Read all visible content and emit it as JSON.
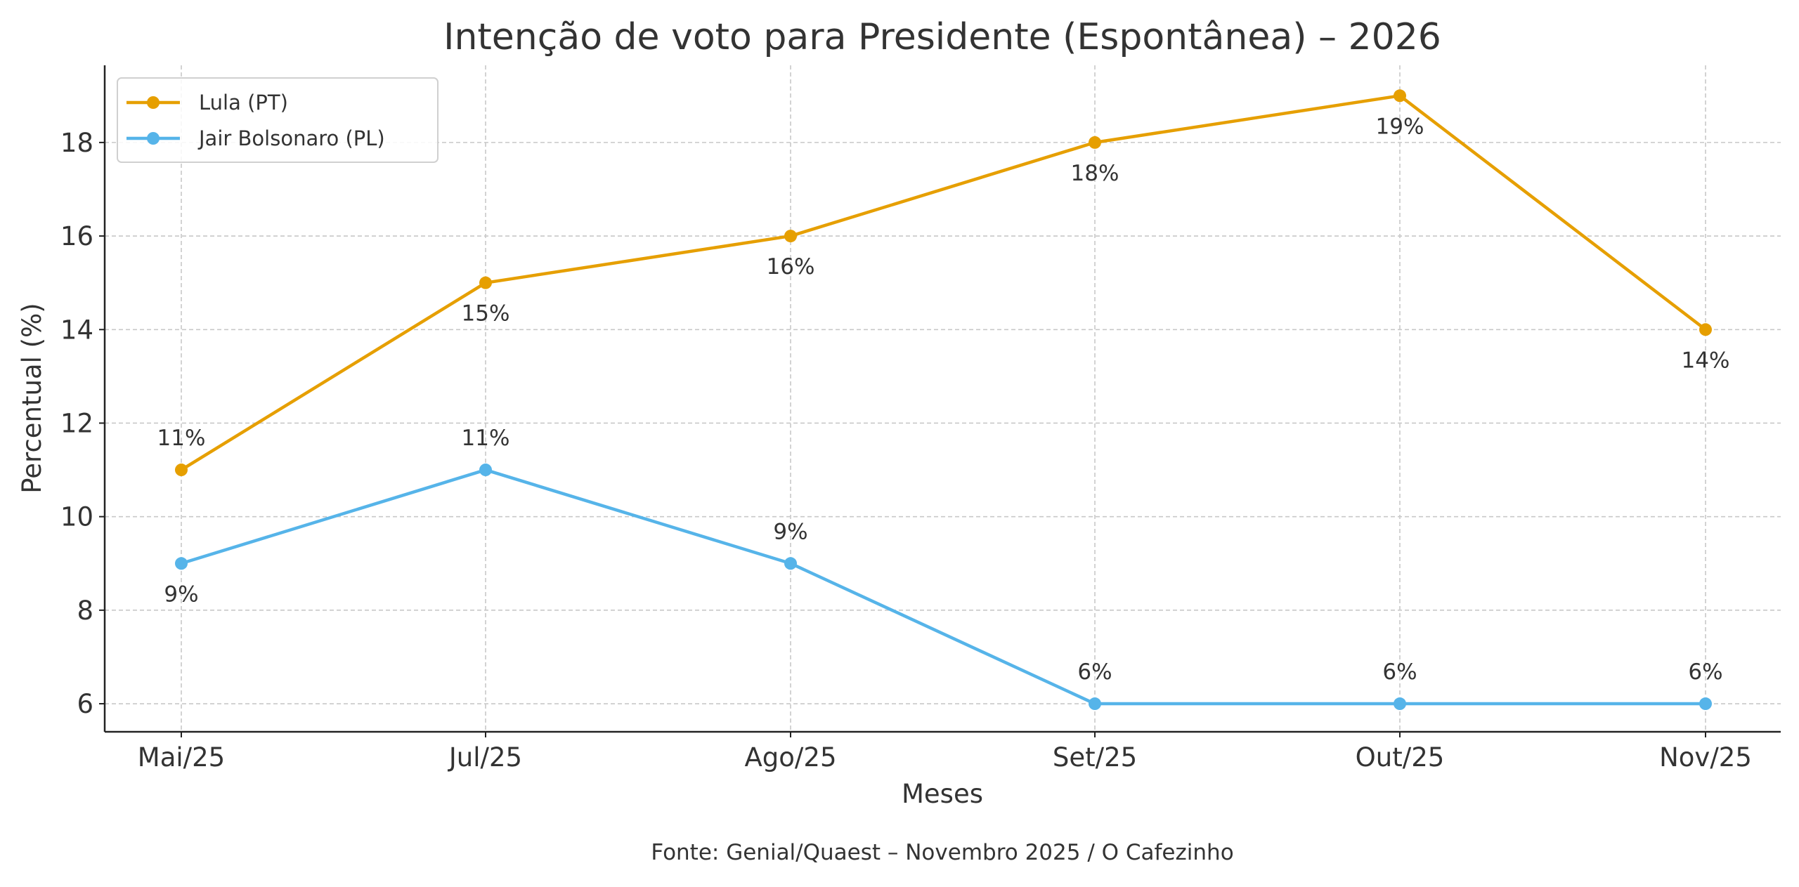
{
  "chart_data": {
    "type": "line",
    "title": "Intenção de voto para Presidente (Espontânea) – 2026",
    "xlabel": "Meses",
    "ylabel": "Percentual (%)",
    "footer": "Fonte: Genial/Quaest – Novembro 2025 / O Cafezinho",
    "categories": [
      "Mai/25",
      "Jul/25",
      "Ago/25",
      "Set/25",
      "Out/25",
      "Nov/25"
    ],
    "ylim": [
      5.4,
      19.65
    ],
    "yticks": [
      6,
      8,
      10,
      12,
      14,
      16,
      18
    ],
    "grid": true,
    "legend_position": "top-left",
    "series": [
      {
        "name": "Lula (PT)",
        "color": "#E69F00",
        "values": [
          11,
          15,
          16,
          18,
          19,
          14
        ],
        "labels": [
          "11%",
          "15%",
          "16%",
          "18%",
          "19%",
          "14%"
        ],
        "label_position": [
          "above",
          "below",
          "below",
          "below",
          "below",
          "below"
        ]
      },
      {
        "name": "Jair Bolsonaro (PL)",
        "color": "#56B4E9",
        "values": [
          9,
          11,
          9,
          6,
          6,
          6
        ],
        "labels": [
          "9%",
          "11%",
          "9%",
          "6%",
          "6%",
          "6%"
        ],
        "label_position": [
          "below",
          "above",
          "above",
          "above",
          "above",
          "above"
        ]
      }
    ]
  }
}
